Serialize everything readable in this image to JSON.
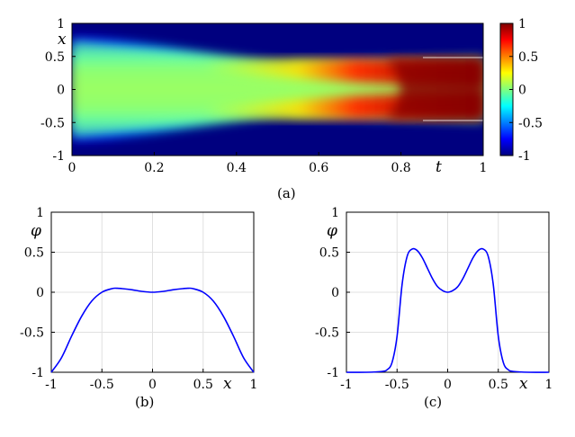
{
  "figure": {
    "panels": [
      "(a)",
      "(b)",
      "(c)"
    ]
  },
  "chart_data": [
    {
      "type": "heatmap",
      "panel": "(a)",
      "xlabel": "t",
      "ylabel": "x",
      "xlim": [
        0,
        1
      ],
      "ylim": [
        -1,
        1
      ],
      "xticks": [
        "0",
        "0.2",
        "0.4",
        "0.6",
        "0.8",
        "1"
      ],
      "yticks": [
        "1",
        "0.5",
        "0",
        "-0.5",
        "-1"
      ],
      "colorbar": {
        "range": [
          -1,
          1
        ],
        "ticks": [
          "1",
          "0.5",
          "0",
          "-0.5",
          "-1"
        ],
        "colormap": "jet",
        "colors": [
          "#00007f",
          "#0000ff",
          "#00ffff",
          "#7fff7f",
          "#ffff00",
          "#ff0000",
          "#7f0000"
        ]
      },
      "description_values": {
        "initial_center_value": 0.0,
        "final_plateau_value": 1.0,
        "final_plateau_x_range": [
          -0.45,
          0.45
        ],
        "outer_value": -1.0
      }
    },
    {
      "type": "line",
      "panel": "(b)",
      "xlabel": "x",
      "ylabel": "φ",
      "xlim": [
        -1,
        1
      ],
      "ylim": [
        -1,
        1
      ],
      "xticks": [
        "-1",
        "-0.5",
        "0",
        "0.5",
        "1"
      ],
      "yticks": [
        "1",
        "0.5",
        "0",
        "-0.5",
        "-1"
      ],
      "grid": true,
      "color": "#0000ff",
      "series": [
        {
          "name": "phi",
          "x": [
            -1.0,
            -0.9,
            -0.8,
            -0.7,
            -0.6,
            -0.5,
            -0.4,
            -0.35,
            -0.3,
            -0.2,
            -0.1,
            0.0,
            0.1,
            0.2,
            0.3,
            0.35,
            0.4,
            0.5,
            0.6,
            0.7,
            0.8,
            0.9,
            1.0
          ],
          "y": [
            -1.0,
            -0.82,
            -0.55,
            -0.3,
            -0.11,
            0.0,
            0.045,
            0.05,
            0.045,
            0.03,
            0.01,
            0.0,
            0.01,
            0.03,
            0.045,
            0.05,
            0.045,
            0.0,
            -0.11,
            -0.3,
            -0.55,
            -0.82,
            -1.0
          ]
        }
      ]
    },
    {
      "type": "line",
      "panel": "(c)",
      "xlabel": "x",
      "ylabel": "φ",
      "xlim": [
        -1,
        1
      ],
      "ylim": [
        -1,
        1
      ],
      "xticks": [
        "-1",
        "-0.5",
        "0",
        "0.5",
        "1"
      ],
      "yticks": [
        "1",
        "0.5",
        "0",
        "-0.5",
        "-1"
      ],
      "grid": true,
      "color": "#0000ff",
      "series": [
        {
          "name": "phi",
          "x": [
            -1.0,
            -0.8,
            -0.65,
            -0.6,
            -0.55,
            -0.5,
            -0.45,
            -0.4,
            -0.35,
            -0.3,
            -0.25,
            -0.2,
            -0.15,
            -0.1,
            -0.05,
            0.0,
            0.05,
            0.1,
            0.15,
            0.2,
            0.25,
            0.3,
            0.35,
            0.4,
            0.45,
            0.5,
            0.55,
            0.6,
            0.65,
            0.8,
            1.0
          ],
          "y": [
            -1.0,
            -1.0,
            -0.99,
            -0.97,
            -0.88,
            -0.55,
            0.1,
            0.45,
            0.54,
            0.52,
            0.43,
            0.3,
            0.17,
            0.07,
            0.02,
            0.0,
            0.02,
            0.07,
            0.17,
            0.3,
            0.43,
            0.52,
            0.54,
            0.45,
            0.1,
            -0.55,
            -0.88,
            -0.97,
            -0.99,
            -1.0,
            -1.0
          ]
        }
      ]
    }
  ]
}
